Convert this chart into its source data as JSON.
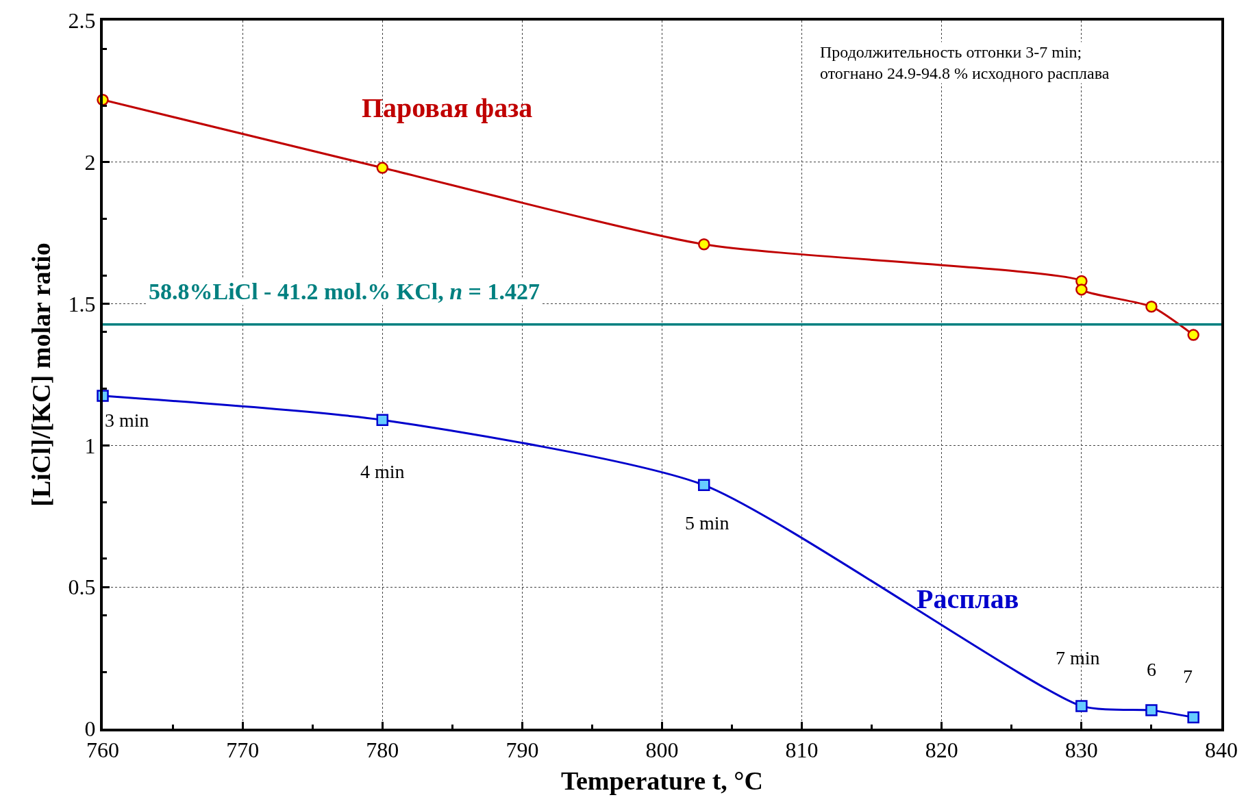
{
  "chart_data": {
    "type": "line",
    "xlabel": "Temperature t, °C",
    "ylabel": "[LiCl]/[KC] molar ratio",
    "xlim": [
      760,
      840
    ],
    "xticks": [
      760,
      770,
      780,
      790,
      800,
      810,
      820,
      830,
      840
    ],
    "ylim": [
      0,
      2.5
    ],
    "yticks": [
      0,
      0.5,
      1,
      1.5,
      2,
      2.5
    ],
    "grid": true,
    "line_style": "solid",
    "series": [
      {
        "name": "Паровая фаза",
        "color": "#c00000",
        "marker": "circle",
        "x": [
          760,
          780,
          803,
          830,
          830,
          835,
          838
        ],
        "values": [
          2.22,
          1.98,
          1.71,
          1.58,
          1.55,
          1.49,
          1.39
        ]
      },
      {
        "name": "Расплав",
        "color": "#0000cc",
        "marker": "square",
        "x": [
          760,
          780,
          803,
          830,
          835,
          838
        ],
        "values": [
          1.175,
          1.09,
          0.86,
          0.08,
          0.065,
          0.04
        ]
      }
    ],
    "ref_lines": [
      {
        "axis": "y",
        "value": 1.427,
        "label": "58.8%LiCl - 41.2 mol.% KCl, n = 1.427",
        "color": "#008080",
        "line_style": "solid"
      }
    ],
    "annotations": [
      "Продолжительность отгонки 3-7 min;\nотогнано 24.9-94.8 % исходного расплава",
      {
        "text": "3 min",
        "x": 760,
        "y": 1.175
      },
      {
        "text": "4 min",
        "x": 780,
        "y": 1.09
      },
      {
        "text": "5 min",
        "x": 803,
        "y": 0.86
      },
      {
        "text": "7 min",
        "x": 830,
        "y": 0.08
      },
      {
        "text": "6",
        "x": 835,
        "y": 0.065
      },
      {
        "text": "7",
        "x": 838,
        "y": 0.04
      }
    ]
  }
}
